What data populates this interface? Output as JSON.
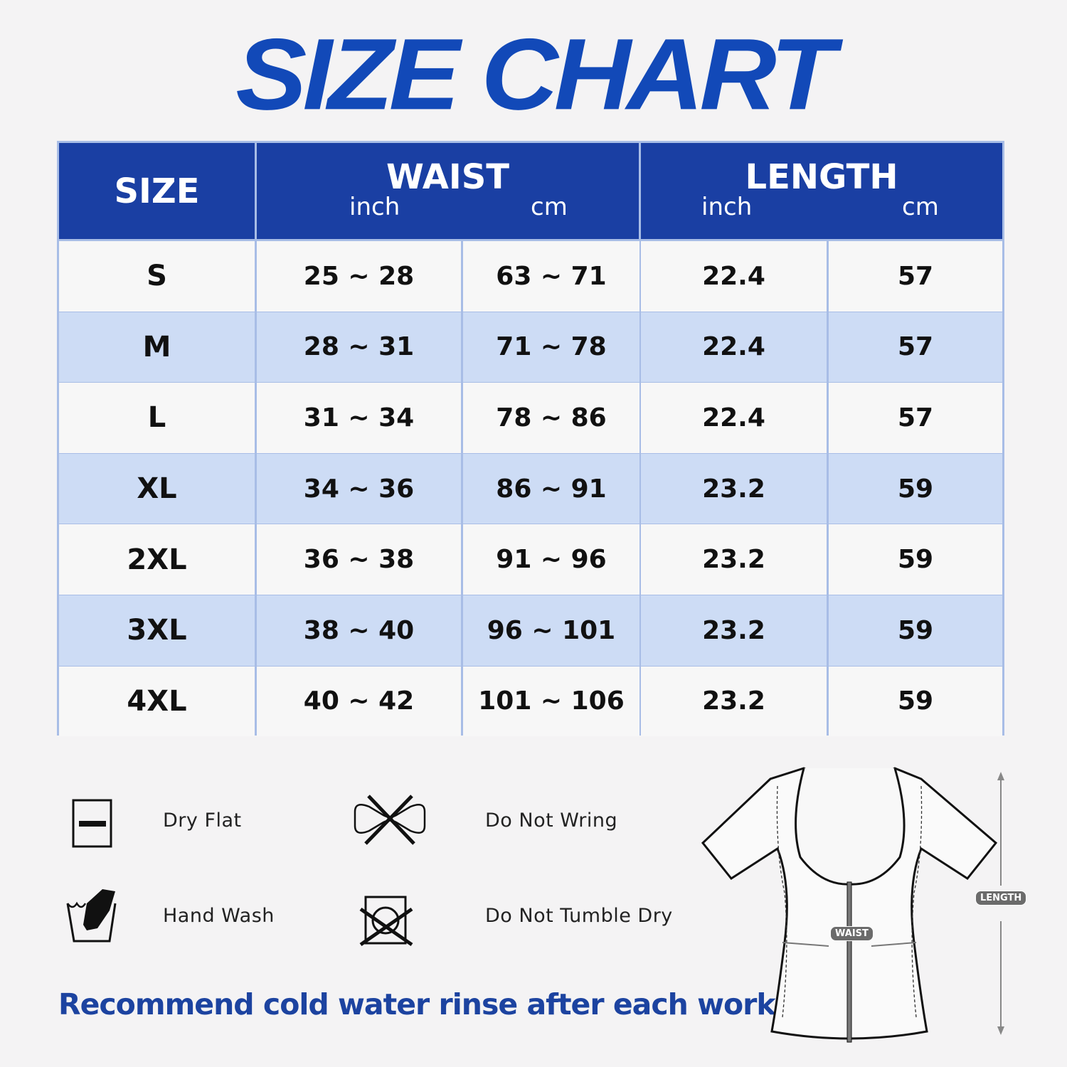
{
  "title": "SIZE CHART",
  "table": {
    "headers": {
      "size": "SIZE",
      "waist": "WAIST",
      "length": "LENGTH",
      "inch": "inch",
      "cm": "cm"
    },
    "rows": [
      {
        "size": "S",
        "waist_inch": "25 ~ 28",
        "waist_cm": "63 ~ 71",
        "length_inch": "22.4",
        "length_cm": "57"
      },
      {
        "size": "M",
        "waist_inch": "28 ~ 31",
        "waist_cm": "71 ~ 78",
        "length_inch": "22.4",
        "length_cm": "57"
      },
      {
        "size": "L",
        "waist_inch": "31 ~ 34",
        "waist_cm": "78 ~ 86",
        "length_inch": "22.4",
        "length_cm": "57"
      },
      {
        "size": "XL",
        "waist_inch": "34 ~ 36",
        "waist_cm": "86 ~ 91",
        "length_inch": "23.2",
        "length_cm": "59"
      },
      {
        "size": "2XL",
        "waist_inch": "36 ~ 38",
        "waist_cm": "91 ~ 96",
        "length_inch": "23.2",
        "length_cm": "59"
      },
      {
        "size": "3XL",
        "waist_inch": "38 ~ 40",
        "waist_cm": "96 ~ 101",
        "length_inch": "23.2",
        "length_cm": "59"
      },
      {
        "size": "4XL",
        "waist_inch": "40 ~ 42",
        "waist_cm": "101 ~ 106",
        "length_inch": "23.2",
        "length_cm": "59"
      }
    ]
  },
  "care": {
    "dry_flat": "Dry Flat",
    "do_not_wring": "Do Not Wring",
    "hand_wash": "Hand Wash",
    "do_not_tumble_dry": "Do Not Tumble Dry"
  },
  "note": "Recommend cold water rinse after each workout.",
  "diagram": {
    "waist": "WAIST",
    "length": "LENGTH"
  },
  "colors": {
    "header": "#1a3fa3",
    "title": "#1249b8",
    "row_alt": "#cddcf5",
    "row": "#f7f7f7",
    "border": "#a8bde6"
  }
}
